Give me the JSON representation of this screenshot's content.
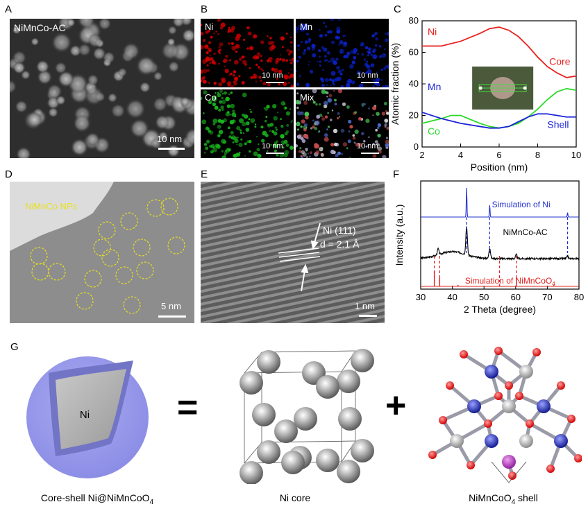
{
  "panels": {
    "A": {
      "letter": "A",
      "label": "NiMnCo-AC",
      "scale": "10 nm"
    },
    "B": {
      "letter": "B",
      "maps": [
        {
          "label": "Ni",
          "color": "#d10000",
          "scale": "10 nm"
        },
        {
          "label": "Mn",
          "color": "#0a22c8",
          "scale": "10 nm"
        },
        {
          "label": "Co",
          "color": "#19b51e",
          "scale": "10 nm"
        },
        {
          "label": "Mix",
          "color": "#888888",
          "scale": "10 nm"
        }
      ]
    },
    "C": {
      "letter": "C"
    },
    "D": {
      "letter": "D",
      "label": "NiMnCo NPs",
      "scale": "5 nm"
    },
    "E": {
      "letter": "E",
      "label_plane": "Ni (111)",
      "label_d": "d = 2.1 Å",
      "scale": "1 nm"
    },
    "F": {
      "letter": "F"
    },
    "G": {
      "letter": "G",
      "core_label": "Ni",
      "equals": "=",
      "plus": "+",
      "captions": {
        "left_main": "Core-shell Ni@NiMnCoO",
        "left_sub": "4",
        "middle": "Ni core",
        "right_main": "NiMnCoO",
        "right_sub": "4",
        "right_tail": " shell"
      }
    }
  },
  "chart_data": [
    {
      "panel": "C",
      "type": "line",
      "xlabel": "Position (nm)",
      "ylabel": "Atomic fraction (%)",
      "xlim": [
        2,
        10
      ],
      "ylim": [
        0,
        80
      ],
      "xticks": [
        2,
        4,
        6,
        8,
        10
      ],
      "yticks": [
        0,
        20,
        40,
        60,
        80
      ],
      "annotations": [
        "Core",
        "Shell"
      ],
      "series": [
        {
          "name": "Ni",
          "color": "#e8201e",
          "x": [
            2,
            3,
            4,
            5,
            5.5,
            6,
            6.5,
            7,
            7.5,
            8,
            8.5,
            9,
            9.5,
            10
          ],
          "y": [
            64,
            64,
            67,
            72,
            75,
            76,
            74,
            70,
            64,
            57,
            51,
            47,
            44,
            45
          ]
        },
        {
          "name": "Co",
          "color": "#2bd92b",
          "x": [
            2,
            3,
            3.5,
            4,
            5,
            5.5,
            6,
            6.5,
            7,
            7.5,
            8,
            8.5,
            9,
            9.5,
            10
          ],
          "y": [
            15,
            18,
            20,
            20,
            15,
            13,
            12,
            13,
            15,
            19,
            24,
            30,
            35,
            37,
            36
          ]
        },
        {
          "name": "Mn",
          "color": "#1a23d6",
          "x": [
            2,
            3,
            4,
            5,
            5.5,
            6,
            6.5,
            7,
            7.5,
            8,
            8.5,
            9,
            9.5,
            10
          ],
          "y": [
            22,
            18,
            15,
            13,
            12,
            12,
            13,
            16,
            19,
            21,
            21,
            20,
            19,
            19
          ]
        }
      ]
    },
    {
      "panel": "F",
      "type": "line",
      "xlabel": "2 Theta (degree)",
      "ylabel": "Intensity (a.u.)",
      "xlim": [
        30,
        80
      ],
      "xticks": [
        30,
        40,
        50,
        60,
        70,
        80
      ],
      "series": [
        {
          "name": "Simulation of Ni",
          "color": "#2030d0",
          "peaks": [
            {
              "x": 44.5,
              "h": 1.0
            },
            {
              "x": 51.8,
              "h": 0.4
            },
            {
              "x": 76.4,
              "h": 0.15
            }
          ]
        },
        {
          "name": "NiMnCo-AC",
          "color": "#000000",
          "peaks": [
            {
              "x": 35.5,
              "h": 0.18
            },
            {
              "x": 44.5,
              "h": 0.85
            },
            {
              "x": 51.8,
              "h": 0.32
            },
            {
              "x": 60.2,
              "h": 0.12
            },
            {
              "x": 76.4,
              "h": 0.08
            }
          ]
        },
        {
          "name": "Simulation of NiMnCoO",
          "name_sub": "4",
          "color": "#e02020",
          "peaks": [
            {
              "x": 34.3,
              "h": 1.0
            },
            {
              "x": 36.0,
              "h": 0.55
            },
            {
              "x": 41.8,
              "h": 0.1
            },
            {
              "x": 54.9,
              "h": 0.15
            },
            {
              "x": 60.2,
              "h": 0.55
            },
            {
              "x": 72.0,
              "h": 0.08
            }
          ]
        }
      ],
      "dashed_lines": {
        "blue": [
          44.5,
          51.8,
          76.4
        ],
        "red": [
          34.3,
          36.0,
          54.9,
          60.2
        ]
      }
    }
  ]
}
